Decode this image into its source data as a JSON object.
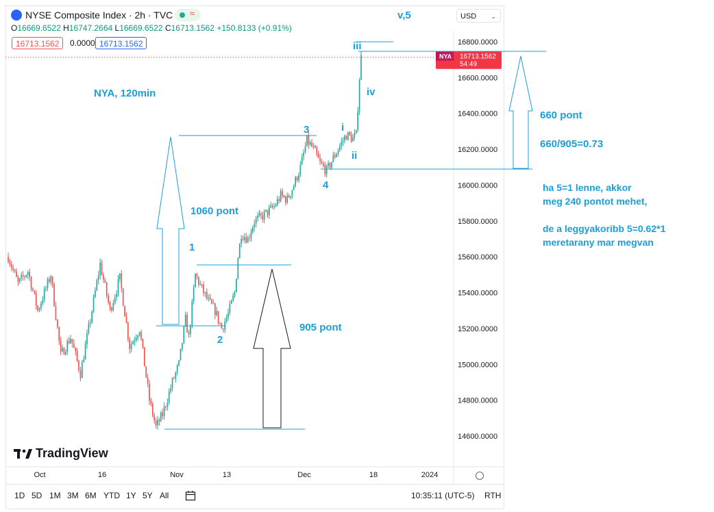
{
  "header": {
    "symbol_title": "NYSE Composite Index · 2h · TVC",
    "live_wave": "≈",
    "ohlc": {
      "o_label": "O",
      "o": "16669.6522",
      "h_label": "H",
      "h": "16747.2664",
      "l_label": "L",
      "l": "16669.6522",
      "c_label": "C",
      "c": "16713.1562",
      "change": "+150.8133 (+0.91%)"
    },
    "bid": "16713.1562",
    "spread": "0.0000",
    "ask": "16713.1562",
    "currency": "USD",
    "currency_chevron": "⌄"
  },
  "watermark": "TradingView",
  "range_buttons": [
    "1D",
    "5D",
    "1M",
    "3M",
    "6M",
    "YTD",
    "1Y",
    "5Y",
    "All"
  ],
  "clock": "10:35:11 (UTC-5)",
  "session": "RTH",
  "chart_data": {
    "type": "candlestick",
    "symbol": "NYA",
    "timeframe": "2h",
    "y_ticks": [
      14600,
      14800,
      15000,
      15200,
      15400,
      15600,
      15800,
      16000,
      16200,
      16400,
      16600,
      16800
    ],
    "y_tick_labels": [
      "14600.0000",
      "14800.0000",
      "15000.0000",
      "15200.0000",
      "15400.0000",
      "15600.0000",
      "15800.0000",
      "16000.0000",
      "16200.0000",
      "16400.0000",
      "16600.0000",
      "16800.0000"
    ],
    "ylim": [
      14480,
      16920
    ],
    "x_ticks": [
      "Oct",
      "16",
      "Nov",
      "13",
      "Dec",
      "18",
      "2024"
    ],
    "last_price": {
      "label": "NYA",
      "value": "16713.1562",
      "countdown": "54:49",
      "color": "#f23645"
    },
    "up_color": "#26a69a",
    "down_color": "#ef5350",
    "path_knots": [
      [
        0,
        15600
      ],
      [
        6,
        15450
      ],
      [
        12,
        15520
      ],
      [
        18,
        15300
      ],
      [
        26,
        15500
      ],
      [
        32,
        15050
      ],
      [
        38,
        15150
      ],
      [
        44,
        14950
      ],
      [
        50,
        15250
      ],
      [
        56,
        15560
      ],
      [
        62,
        15300
      ],
      [
        68,
        15480
      ],
      [
        74,
        15100
      ],
      [
        80,
        15200
      ],
      [
        86,
        14800
      ],
      [
        90,
        14650
      ],
      [
        94,
        14720
      ],
      [
        100,
        14900
      ],
      [
        104,
        15000
      ],
      [
        108,
        15250
      ],
      [
        110,
        15150
      ],
      [
        114,
        15500
      ],
      [
        118,
        15420
      ],
      [
        122,
        15350
      ],
      [
        126,
        15300
      ],
      [
        130,
        15200
      ],
      [
        134,
        15280
      ],
      [
        138,
        15400
      ],
      [
        140,
        15600
      ],
      [
        142,
        15730
      ],
      [
        146,
        15700
      ],
      [
        150,
        15800
      ],
      [
        154,
        15820
      ],
      [
        158,
        15850
      ],
      [
        162,
        15880
      ],
      [
        166,
        15940
      ],
      [
        170,
        15920
      ],
      [
        174,
        16000
      ],
      [
        178,
        16100
      ],
      [
        182,
        16250
      ],
      [
        186,
        16200
      ],
      [
        190,
        16120
      ],
      [
        194,
        16080
      ],
      [
        198,
        16150
      ],
      [
        202,
        16220
      ],
      [
        206,
        16280
      ],
      [
        210,
        16260
      ],
      [
        212,
        16280
      ],
      [
        214,
        16600
      ],
      [
        215,
        16713
      ]
    ],
    "candle_count": 216,
    "annotations": {
      "wave_v5": "v,5",
      "title": "NYA, 120min",
      "wave_1": "1",
      "wave_2": "2",
      "wave_3": "3",
      "wave_4": "4",
      "wave_i": "i",
      "wave_ii": "ii",
      "wave_iii": "iii",
      "wave_iv": "iv",
      "pts_1060": "1060 pont",
      "pts_905": "905 pont",
      "pts_660": "660 pont",
      "ratio": "660/905=0.73",
      "note_line1": "ha 5=1 lenne, akkor",
      "note_line2": "meg 240 pontot mehet,",
      "note_line3": "de a leggyakoribb 5=0.62*1",
      "note_line4": "meretarany mar megvan"
    },
    "measure_levels": {
      "wave1_low": 15220,
      "wave1_high": 16270,
      "wave2_low": 14640,
      "wave2_high": 15550,
      "wave5_low": 16090,
      "wave5_high": 16750
    }
  }
}
